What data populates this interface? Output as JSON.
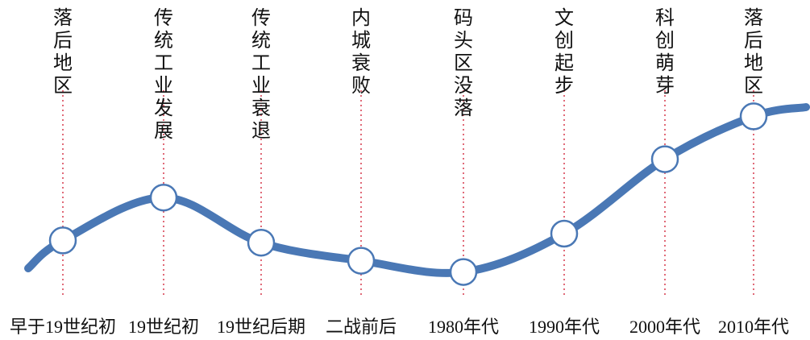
{
  "stages": [
    {
      "label": "落后地区",
      "period": "早于19世纪初",
      "level": 0.22
    },
    {
      "label": "传统工业发展",
      "period": "19世纪初",
      "level": 0.41
    },
    {
      "label": "传统工业衰退",
      "period": "19世纪后期",
      "level": 0.21
    },
    {
      "label": "内城衰败",
      "period": "二战前后",
      "level": 0.13
    },
    {
      "label": "码头区没落",
      "period": "1980年代",
      "level": 0.08
    },
    {
      "label": "文创起步",
      "period": "1990年代",
      "level": 0.25
    },
    {
      "label": "科创萌芽",
      "period": "2000年代",
      "level": 0.58
    },
    {
      "label": "落后地区",
      "period": "2010年代",
      "level": 0.77
    }
  ],
  "colors": {
    "curve": "#4a78b5",
    "dotted_line": "#e06a78",
    "marker_fill": "#ffffff",
    "marker_stroke": "#4a78b5",
    "text": "#111111"
  }
}
